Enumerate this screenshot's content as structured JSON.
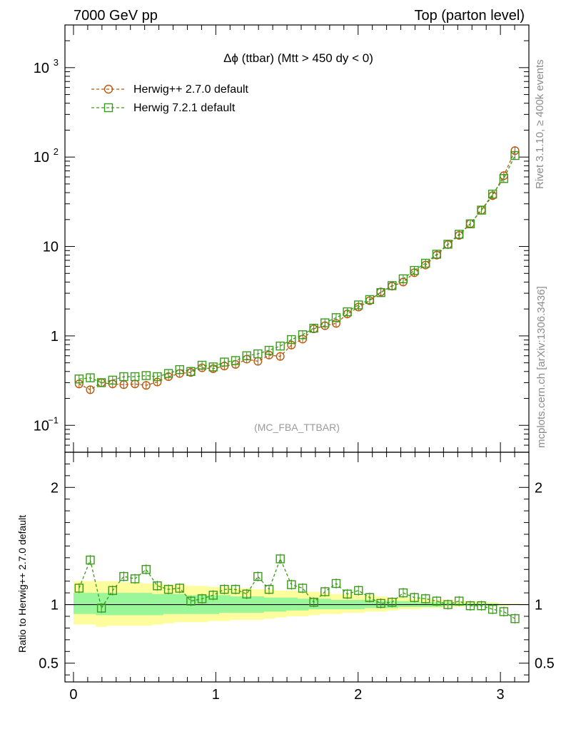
{
  "header": {
    "left": "7000 GeV pp",
    "right": "Top (parton level)"
  },
  "side_labels": {
    "rivet": "Rivet 3.1.10, ≥ 400k events",
    "mcplots": "mcplots.cern.ch [arXiv:1306.3436]"
  },
  "colors": {
    "herwigpp": "#b8560b",
    "herwig7": "#3a9a1a",
    "band_inner": "#99f699",
    "band_outer": "#fdfd9d"
  },
  "chart_data": [
    {
      "type": "scatter",
      "title": "Δϕ (ttbar) (Mtt > 450 dy < 0)",
      "watermark": "(MC_FBA_TTBAR)",
      "yscale": "log",
      "xlim": [
        -0.06,
        3.2
      ],
      "ylim": [
        0.05,
        3000
      ],
      "yticks": [
        {
          "value": 0.1,
          "label": "10",
          "sup": "−1"
        },
        {
          "value": 1,
          "label": "1",
          "sup": ""
        },
        {
          "value": 10,
          "label": "10",
          "sup": ""
        },
        {
          "value": 100,
          "label": "10",
          "sup": "2"
        },
        {
          "value": 1000,
          "label": "10",
          "sup": "3"
        }
      ],
      "legend_position": "top-left",
      "x": [
        0.0393,
        0.1178,
        0.1963,
        0.2749,
        0.3534,
        0.432,
        0.5105,
        0.589,
        0.6676,
        0.7461,
        0.8247,
        0.9032,
        0.9817,
        1.0603,
        1.1388,
        1.2174,
        1.2959,
        1.3744,
        1.453,
        1.5315,
        1.6101,
        1.6886,
        1.7671,
        1.8457,
        1.9242,
        2.0028,
        2.0813,
        2.1598,
        2.2384,
        2.3169,
        2.3955,
        2.474,
        2.5525,
        2.6311,
        2.7096,
        2.7882,
        2.8667,
        2.9452,
        3.0238,
        3.1023
      ],
      "series": [
        {
          "name": "Herwig++ 2.7.0 default",
          "marker": "circle",
          "values": [
            0.29,
            0.25,
            0.3,
            0.29,
            0.285,
            0.29,
            0.28,
            0.305,
            0.35,
            0.38,
            0.39,
            0.44,
            0.43,
            0.46,
            0.48,
            0.55,
            0.52,
            0.61,
            0.59,
            0.79,
            0.92,
            1.2,
            1.3,
            1.38,
            1.76,
            2.1,
            2.48,
            3.1,
            3.6,
            4.0,
            5.1,
            6.2,
            8.0,
            10.5,
            13.3,
            18.0,
            25.5,
            37.0,
            62.0,
            118.0
          ]
        },
        {
          "name": "Herwig 7.2.1 default",
          "marker": "square",
          "values": [
            0.33,
            0.34,
            0.3,
            0.32,
            0.35,
            0.35,
            0.36,
            0.35,
            0.38,
            0.42,
            0.4,
            0.47,
            0.45,
            0.51,
            0.53,
            0.6,
            0.63,
            0.69,
            0.77,
            0.91,
            1.03,
            1.22,
            1.4,
            1.6,
            1.86,
            2.22,
            2.55,
            3.05,
            3.65,
            4.35,
            5.4,
            6.5,
            8.2,
            10.6,
            13.7,
            17.9,
            25.5,
            38.5,
            57.5,
            104.0
          ]
        }
      ]
    },
    {
      "type": "scatter",
      "ylabel": "Ratio to Herwig++ 2.7.0 default",
      "xlim": [
        -0.06,
        3.2
      ],
      "ylim": [
        0.34,
        2.3
      ],
      "xticks": [
        0,
        1,
        2,
        3
      ],
      "yticks": [
        0.5,
        1,
        2
      ],
      "reference_line": 1,
      "series": [
        {
          "name": "Herwig 7.2.1 default",
          "marker": "square",
          "values": [
            1.14,
            1.38,
            0.97,
            1.12,
            1.24,
            1.22,
            1.3,
            1.16,
            1.13,
            1.14,
            1.03,
            1.05,
            1.08,
            1.13,
            1.13,
            1.09,
            1.24,
            1.13,
            1.39,
            1.17,
            1.14,
            1.02,
            1.11,
            1.18,
            1.09,
            1.12,
            1.06,
            1.01,
            1.02,
            1.1,
            1.06,
            1.05,
            1.03,
            1.0,
            1.03,
            0.99,
            0.99,
            0.96,
            0.94,
            0.88
          ]
        }
      ],
      "uncertainty_band": {
        "inner_low": [
          0.92,
          0.92,
          0.91,
          0.91,
          0.91,
          0.91,
          0.91,
          0.91,
          0.92,
          0.92,
          0.92,
          0.92,
          0.92,
          0.93,
          0.93,
          0.93,
          0.93,
          0.94,
          0.94,
          0.95,
          0.95,
          0.96,
          0.96,
          0.96,
          0.96,
          0.96,
          0.97,
          0.97,
          0.97,
          0.98,
          0.98,
          0.98,
          0.98,
          0.99,
          0.99,
          0.99,
          0.99,
          0.99,
          1.0,
          1.0
        ],
        "inner_high": [
          1.1,
          1.1,
          1.1,
          1.1,
          1.1,
          1.1,
          1.1,
          1.09,
          1.09,
          1.09,
          1.08,
          1.08,
          1.08,
          1.08,
          1.07,
          1.07,
          1.07,
          1.06,
          1.06,
          1.06,
          1.05,
          1.05,
          1.05,
          1.04,
          1.04,
          1.04,
          1.04,
          1.03,
          1.03,
          1.03,
          1.02,
          1.02,
          1.02,
          1.02,
          1.01,
          1.01,
          1.01,
          1.01,
          1.0,
          1.0
        ],
        "outer_low": [
          0.83,
          0.83,
          0.81,
          0.82,
          0.82,
          0.82,
          0.82,
          0.83,
          0.84,
          0.85,
          0.85,
          0.85,
          0.86,
          0.86,
          0.87,
          0.87,
          0.87,
          0.88,
          0.89,
          0.9,
          0.9,
          0.91,
          0.92,
          0.92,
          0.93,
          0.93,
          0.94,
          0.94,
          0.95,
          0.96,
          0.96,
          0.97,
          0.97,
          0.98,
          0.98,
          0.99,
          0.99,
          0.99,
          0.99,
          1.0
        ],
        "outer_high": [
          1.2,
          1.2,
          1.2,
          1.2,
          1.19,
          1.19,
          1.18,
          1.18,
          1.17,
          1.17,
          1.16,
          1.16,
          1.15,
          1.15,
          1.14,
          1.14,
          1.13,
          1.13,
          1.12,
          1.12,
          1.11,
          1.11,
          1.1,
          1.09,
          1.09,
          1.08,
          1.08,
          1.07,
          1.06,
          1.06,
          1.05,
          1.05,
          1.04,
          1.04,
          1.03,
          1.03,
          1.02,
          1.02,
          1.01,
          1.01
        ]
      }
    }
  ]
}
